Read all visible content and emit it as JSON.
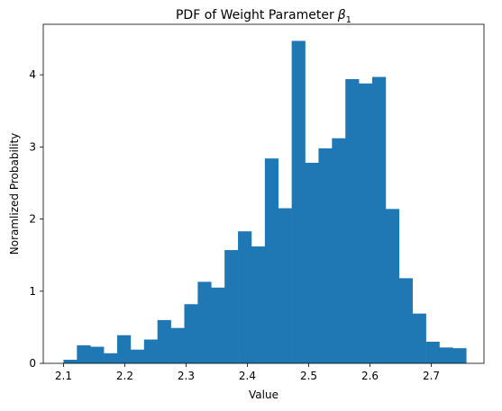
{
  "chart_data": {
    "type": "bar",
    "title": "PDF of Weight Parameter",
    "title_symbol": "β",
    "title_subscript": "1",
    "xlabel": "Value",
    "ylabel": "Noramlized Probability",
    "xlim": [
      2.067,
      2.786
    ],
    "ylim": [
      0,
      4.7
    ],
    "xticks": [
      "2.1",
      "2.2",
      "2.3",
      "2.4",
      "2.5",
      "2.6",
      "2.7"
    ],
    "yticks": [
      "0",
      "1",
      "2",
      "3",
      "4"
    ],
    "bin_start": 2.1,
    "bin_width": 0.0219,
    "values": [
      0.05,
      0.25,
      0.23,
      0.14,
      0.39,
      0.19,
      0.33,
      0.6,
      0.49,
      0.82,
      1.13,
      1.05,
      1.57,
      1.83,
      1.62,
      2.84,
      2.15,
      4.47,
      2.78,
      2.98,
      3.12,
      3.94,
      3.88,
      3.97,
      2.14,
      1.18,
      0.69,
      0.3,
      0.22,
      0.21
    ],
    "bar_color": "#1f77b4",
    "grid": false
  }
}
